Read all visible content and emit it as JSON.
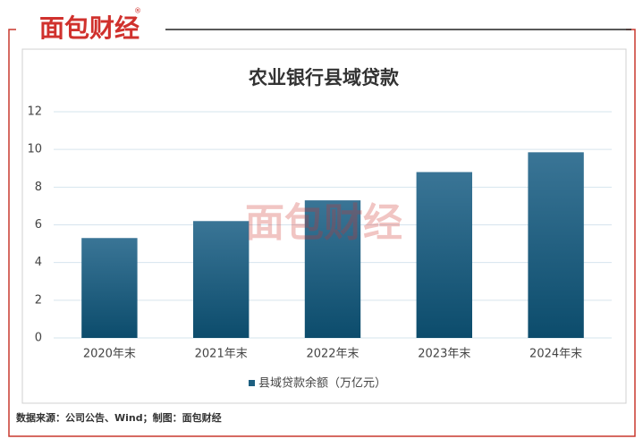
{
  "brand": {
    "logo": "面包财经",
    "registered": "®"
  },
  "source": "数据来源：公司公告、Wind；制图：面包财经",
  "chart_data": {
    "type": "bar",
    "title": "农业银行县域贷款",
    "categories": [
      "2020年末",
      "2021年末",
      "2022年末",
      "2023年末",
      "2024年末"
    ],
    "series": [
      {
        "name": "县域贷款余额（万亿元）",
        "color": "#1d5f80",
        "values": [
          5.3,
          6.2,
          7.3,
          8.8,
          9.85
        ]
      }
    ],
    "ylim": [
      0,
      12
    ],
    "yticks": [
      0,
      2,
      4,
      6,
      8,
      10,
      12
    ],
    "grid": true,
    "legend": "bottom"
  }
}
